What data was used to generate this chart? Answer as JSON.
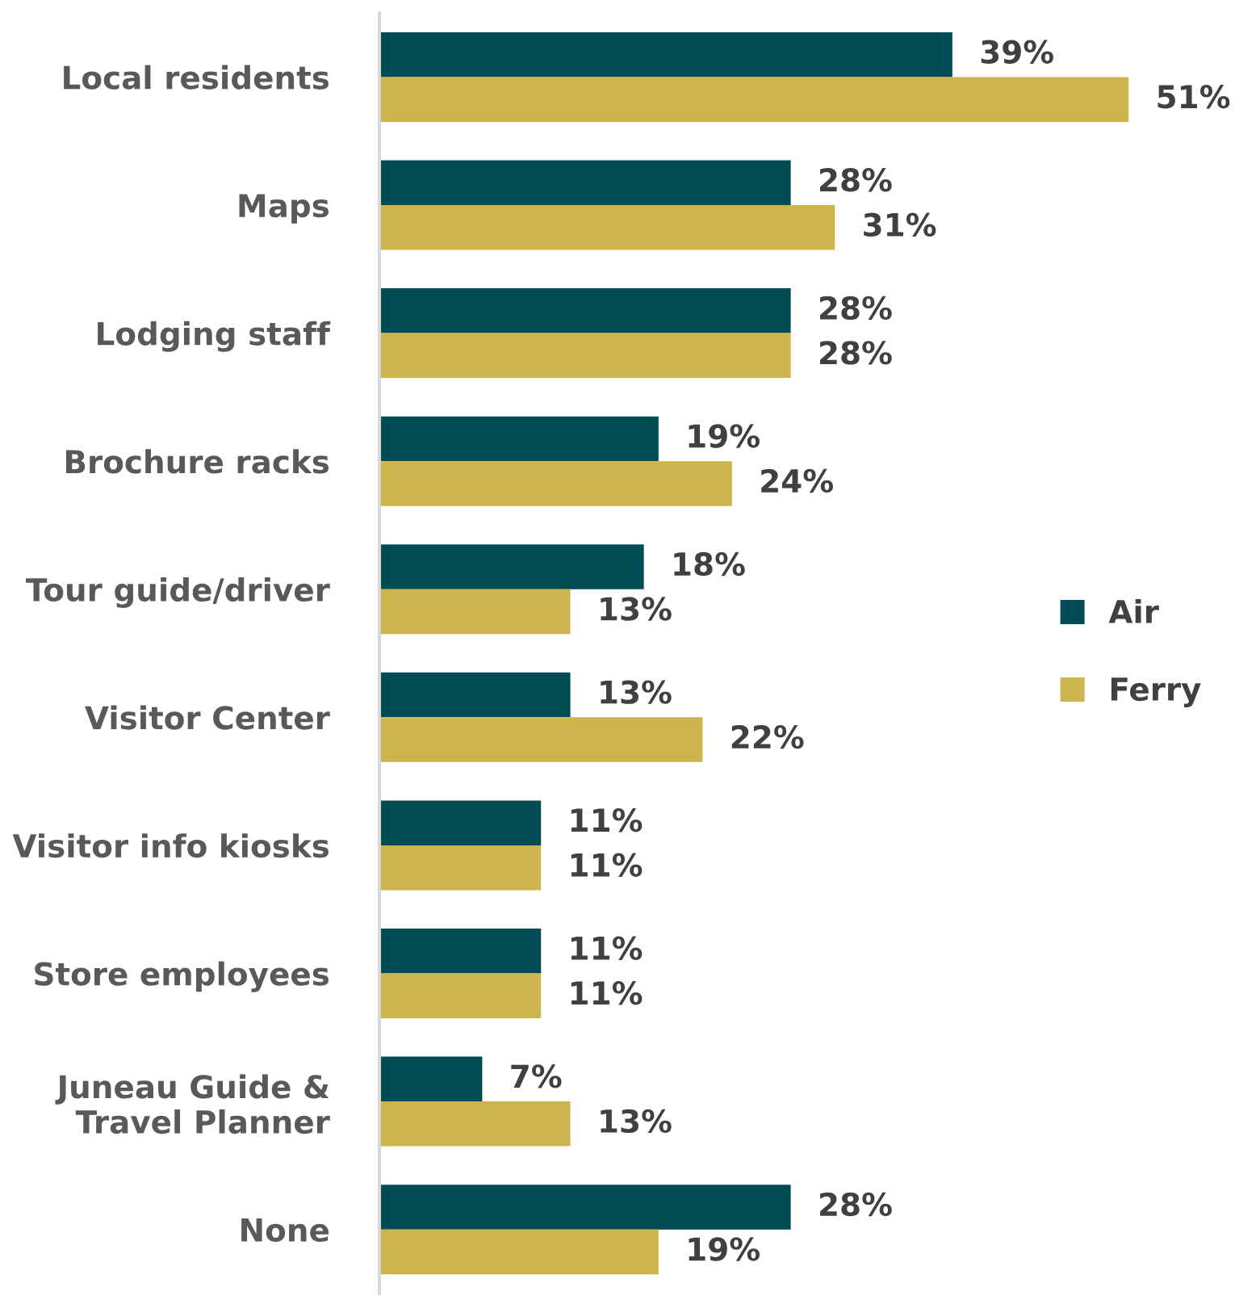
{
  "chart_data": {
    "type": "bar",
    "orientation": "horizontal",
    "categories": [
      "Local residents",
      "Maps",
      "Lodging staff",
      "Brochure racks",
      "Tour guide/driver",
      "Visitor Center",
      "Visitor info kiosks",
      "Store employees",
      "Juneau Guide &\nTravel Planner",
      "None"
    ],
    "series": [
      {
        "name": "Air",
        "color": "#004c55",
        "values": [
          39,
          28,
          28,
          19,
          18,
          13,
          11,
          11,
          7,
          28
        ],
        "value_labels": [
          "39%",
          "28%",
          "28%",
          "19%",
          "18%",
          "13%",
          "11%",
          "11%",
          "7%",
          "28%"
        ]
      },
      {
        "name": "Ferry",
        "color": "#cdb44c",
        "values": [
          51,
          31,
          28,
          24,
          13,
          22,
          11,
          11,
          13,
          19
        ],
        "value_labels": [
          "51%",
          "31%",
          "28%",
          "24%",
          "13%",
          "22%",
          "11%",
          "11%",
          "13%",
          "19%"
        ]
      }
    ],
    "legend": "right",
    "grid": false,
    "tick_labels": "y"
  }
}
